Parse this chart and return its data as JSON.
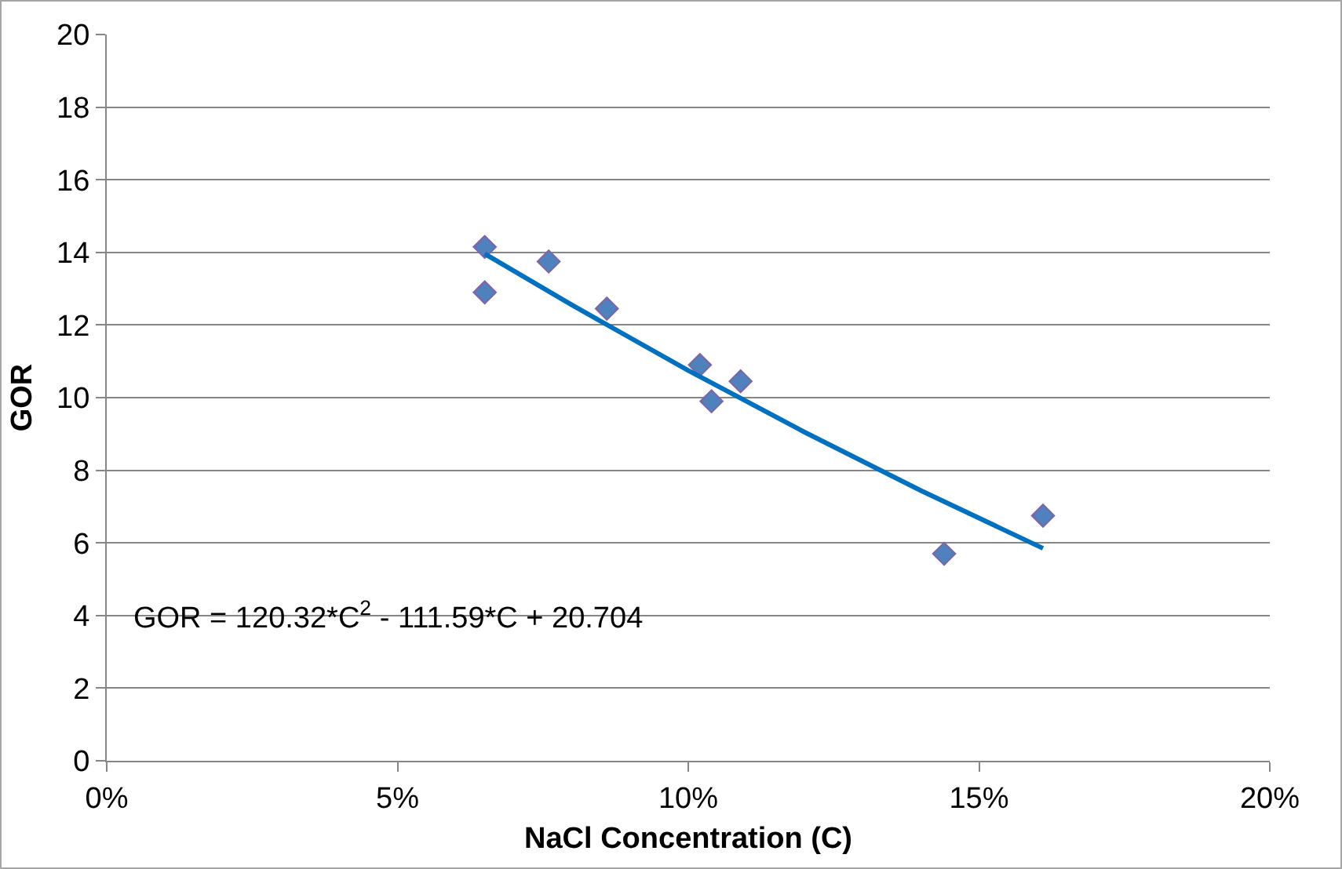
{
  "chart_data": {
    "type": "scatter",
    "xlabel": "NaCl Concentration (C)",
    "ylabel": "GOR",
    "series": [
      {
        "color": "#4f81bd",
        "marker": "diamond",
        "x": [
          0.065,
          0.065,
          0.076,
          0.086,
          0.102,
          0.104,
          0.109,
          0.144,
          0.161
        ],
        "values": [
          14.15,
          12.9,
          13.75,
          12.45,
          10.9,
          9.9,
          10.45,
          5.7,
          6.75
        ]
      },
      {
        "type": "line",
        "color": "#0070c0",
        "marker": "none",
        "line_style": "solid",
        "x": [
          0.065,
          0.08,
          0.1,
          0.12,
          0.14,
          0.161
        ],
        "values": [
          13.96,
          12.55,
          10.75,
          9.05,
          7.44,
          5.85
        ]
      }
    ],
    "xlim": [
      0,
      0.2
    ],
    "xticks": [
      {
        "value": 0,
        "label": "0%"
      },
      {
        "value": 0.05,
        "label": "5%"
      },
      {
        "value": 0.1,
        "label": "10%"
      },
      {
        "value": 0.15,
        "label": "15%"
      },
      {
        "value": 0.2,
        "label": "20%"
      }
    ],
    "ylim": [
      0,
      20
    ],
    "yticks": [
      0,
      2,
      4,
      6,
      8,
      10,
      12,
      14,
      16,
      18,
      20
    ],
    "grid": "y",
    "annotations": [
      "GOR = 120.32*C$^{2}$ - 111.59*C + 20.704"
    ]
  }
}
